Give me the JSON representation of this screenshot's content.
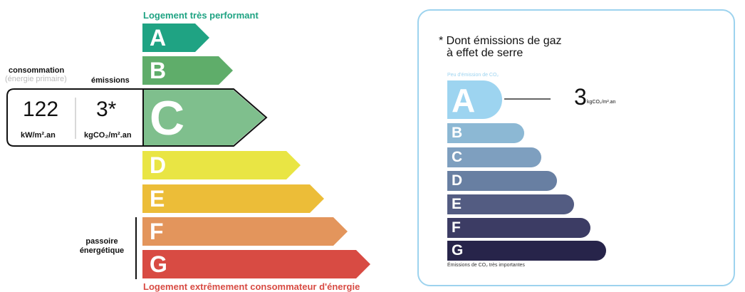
{
  "top_label": "Logement très performant",
  "bottom_label": "Logement extrêmement consommateur d'énergie",
  "consumption": {
    "title": "consommation",
    "subtitle": "(énergie primaire)",
    "value": "122",
    "unit": "kW/m².an"
  },
  "emissions": {
    "title": "émissions",
    "value": "3*",
    "unit": "kgCO₂/m².an"
  },
  "passoire_label": "passoire énergétique",
  "current_class": "C",
  "energy_classes": [
    {
      "letter": "A",
      "color": "#1fa383"
    },
    {
      "letter": "B",
      "color": "#5fad6a"
    },
    {
      "letter": "C",
      "color": "#7fbf8d"
    },
    {
      "letter": "D",
      "color": "#e9e544"
    },
    {
      "letter": "E",
      "color": "#ecbd38"
    },
    {
      "letter": "F",
      "color": "#e3955c"
    },
    {
      "letter": "G",
      "color": "#d84b43"
    }
  ],
  "ghg_panel": {
    "title_line1": "* Dont émissions de gaz",
    "title_line2": "à effet de serre",
    "top_caption": "Peu d'émission de CO₂",
    "bottom_caption": "Émissions de CO₂ très importantes",
    "value": "3",
    "unit": "kgCO₂/m².an",
    "current_class": "A",
    "classes": [
      {
        "letter": "A",
        "color": "#9dd4f0"
      },
      {
        "letter": "B",
        "color": "#8cb8d4"
      },
      {
        "letter": "C",
        "color": "#7e9fbf"
      },
      {
        "letter": "D",
        "color": "#687fa2"
      },
      {
        "letter": "E",
        "color": "#535c82"
      },
      {
        "letter": "F",
        "color": "#3c3c64"
      },
      {
        "letter": "G",
        "color": "#27244a"
      }
    ],
    "border_color": "#9dd3ee"
  }
}
